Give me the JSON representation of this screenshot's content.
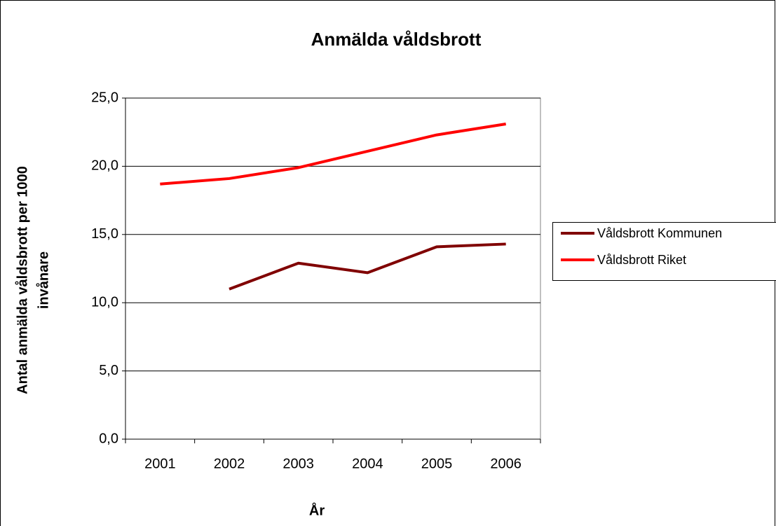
{
  "chart_data": {
    "type": "line",
    "title": "Anmälda våldsbrott",
    "xlabel": "År",
    "ylabel": [
      "Antal anmälda våldsbrott per 1000",
      "invånare"
    ],
    "categories": [
      "2001",
      "2002",
      "2003",
      "2004",
      "2005",
      "2006"
    ],
    "series": [
      {
        "name": "Våldsbrott Kommunen",
        "color": "#800000",
        "values": [
          null,
          11.0,
          12.9,
          12.2,
          14.1,
          14.3
        ]
      },
      {
        "name": "Våldsbrott Riket",
        "color": "#ff0000",
        "values": [
          18.7,
          19.1,
          19.9,
          21.1,
          22.3,
          23.1
        ]
      }
    ],
    "ylim": [
      0,
      25
    ],
    "yticks": [
      {
        "value": 0,
        "label": "0,0"
      },
      {
        "value": 5,
        "label": "5,0"
      },
      {
        "value": 10,
        "label": "10,0"
      },
      {
        "value": 15,
        "label": "15,0"
      },
      {
        "value": 20,
        "label": "20,0"
      },
      {
        "value": 25,
        "label": "25,0"
      }
    ],
    "grid": true,
    "legend": "right"
  }
}
